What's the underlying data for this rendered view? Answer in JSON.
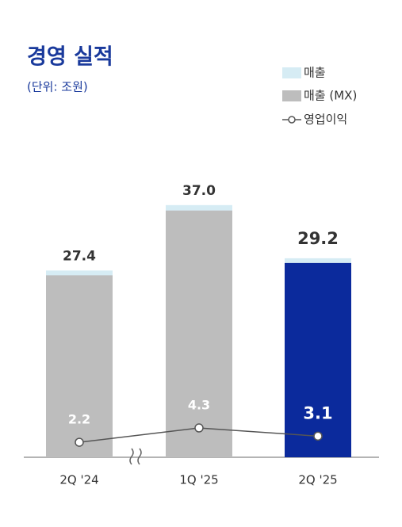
{
  "chart_data": {
    "type": "bar-line",
    "title": "경영 실적",
    "subtitle": "(단위: 조원)",
    "categories": [
      "2Q '24",
      "1Q '25",
      "2Q '25"
    ],
    "ylim": [
      0,
      40
    ],
    "series": [
      {
        "name": "매출",
        "kind": "bar",
        "color": "#d6ecf4",
        "values": [
          27.4,
          37.0,
          29.2
        ],
        "value_labels": [
          "27.4",
          "37.0",
          "29.2"
        ]
      },
      {
        "name": "매출 (MX)",
        "kind": "bar",
        "color": "#bdbdbd",
        "colors": [
          "#bdbdbd",
          "#bdbdbd",
          "#0b2a9c"
        ],
        "values": [
          26.7,
          36.2,
          28.5
        ]
      },
      {
        "name": "영업이익",
        "kind": "line",
        "color": "#555555",
        "values": [
          2.2,
          4.3,
          3.1
        ]
      }
    ],
    "legend": "top-right"
  }
}
